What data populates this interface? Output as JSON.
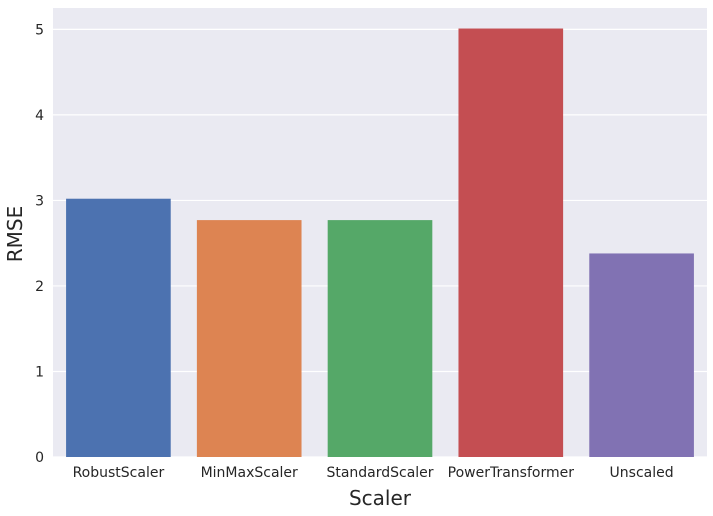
{
  "chart_data": {
    "type": "bar",
    "title": "",
    "xlabel": "Scaler",
    "ylabel": "RMSE",
    "categories": [
      "RobustScaler",
      "MinMaxScaler",
      "StandardScaler",
      "PowerTransformer",
      "Unscaled"
    ],
    "values": [
      3.02,
      2.77,
      2.77,
      5.01,
      2.38
    ],
    "colors": [
      "#4c72b0",
      "#dd8452",
      "#55a868",
      "#c44e52",
      "#8172b3"
    ],
    "ylim": [
      0,
      5.25
    ],
    "yticks": [
      0,
      1,
      2,
      3,
      4,
      5
    ],
    "grid": true,
    "background": "#eaeaf2"
  }
}
